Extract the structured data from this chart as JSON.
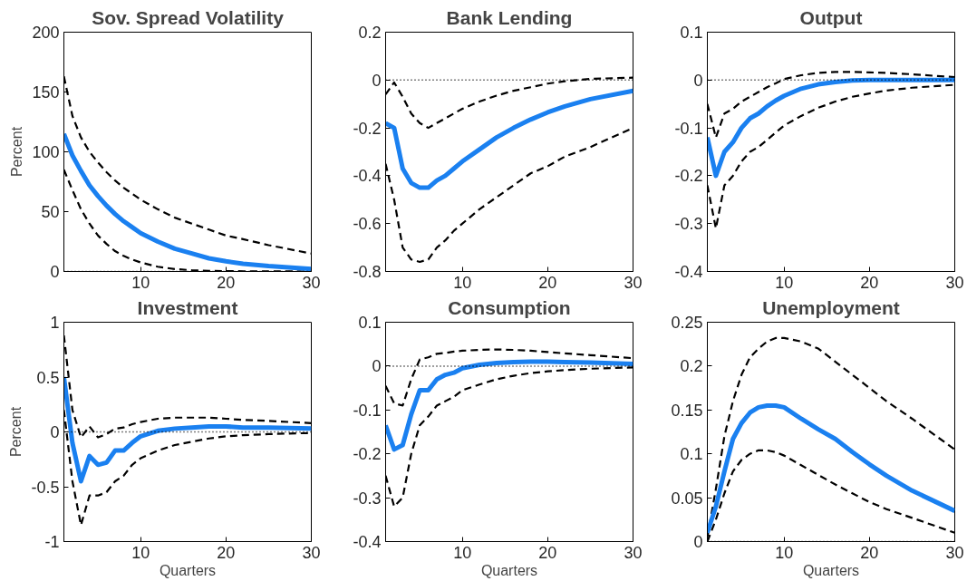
{
  "chart_data": [
    {
      "type": "line",
      "title": "Sov. Spread Volatility",
      "ylabel": "Percent",
      "x": [
        1,
        2,
        3,
        4,
        5,
        6,
        7,
        8,
        9,
        10,
        12,
        14,
        16,
        18,
        20,
        22,
        25,
        30
      ],
      "xlim": [
        1,
        30
      ],
      "xticks": [
        10,
        20,
        30
      ],
      "ylim": [
        0,
        200
      ],
      "yticks": [
        0,
        50,
        100,
        150,
        200
      ],
      "grid": false,
      "ref_lines": [
        {
          "axis": "y",
          "value": 0,
          "color": "#000000",
          "line_style": "dotted"
        }
      ],
      "series": [
        {
          "color": "#000000",
          "line_style": "dashed",
          "values": [
            163,
            130,
            112,
            100,
            91,
            83,
            76,
            70,
            65,
            60,
            52,
            45,
            40,
            35,
            30,
            27,
            22,
            15
          ]
        },
        {
          "color": "#000000",
          "line_style": "dashed",
          "values": [
            85,
            68,
            52,
            40,
            30,
            23,
            17,
            13,
            10,
            7.5,
            4,
            2,
            1,
            0.5,
            0.3,
            0.2,
            0.1,
            0
          ]
        },
        {
          "color": "#1a80f0",
          "line_style": "solid",
          "values": [
            115,
            97,
            84,
            72,
            63,
            55,
            48,
            42,
            37,
            32,
            25,
            19,
            15,
            11,
            8.5,
            6.5,
            4.5,
            2
          ]
        }
      ]
    },
    {
      "type": "line",
      "title": "Bank Lending",
      "x": [
        1,
        2,
        3,
        4,
        5,
        6,
        7,
        8,
        9,
        10,
        12,
        14,
        16,
        18,
        20,
        22,
        25,
        30
      ],
      "xlim": [
        1,
        30
      ],
      "xticks": [
        10,
        20,
        30
      ],
      "ylim": [
        -0.8,
        0.2
      ],
      "yticks": [
        -0.8,
        -0.6,
        -0.4,
        -0.2,
        0,
        0.2
      ],
      "grid": false,
      "ref_lines": [
        {
          "axis": "y",
          "value": 0,
          "color": "#000000",
          "line_style": "dotted"
        }
      ],
      "series": [
        {
          "color": "#000000",
          "line_style": "dashed",
          "values": [
            -0.06,
            -0.01,
            -0.07,
            -0.14,
            -0.18,
            -0.2,
            -0.18,
            -0.16,
            -0.14,
            -0.12,
            -0.09,
            -0.065,
            -0.045,
            -0.03,
            -0.015,
            -0.005,
            0.005,
            0.01
          ]
        },
        {
          "color": "#000000",
          "line_style": "dashed",
          "values": [
            -0.35,
            -0.5,
            -0.7,
            -0.75,
            -0.76,
            -0.75,
            -0.7,
            -0.67,
            -0.63,
            -0.6,
            -0.54,
            -0.49,
            -0.44,
            -0.39,
            -0.36,
            -0.32,
            -0.28,
            -0.2
          ]
        },
        {
          "color": "#1a80f0",
          "line_style": "solid",
          "values": [
            -0.18,
            -0.2,
            -0.37,
            -0.43,
            -0.45,
            -0.45,
            -0.42,
            -0.4,
            -0.37,
            -0.34,
            -0.29,
            -0.24,
            -0.2,
            -0.165,
            -0.135,
            -0.11,
            -0.08,
            -0.045
          ]
        }
      ]
    },
    {
      "type": "line",
      "title": "Output",
      "x": [
        1,
        2,
        3,
        4,
        5,
        6,
        7,
        8,
        9,
        10,
        12,
        14,
        16,
        18,
        20,
        22,
        25,
        30
      ],
      "xlim": [
        1,
        30
      ],
      "xticks": [
        10,
        20,
        30
      ],
      "ylim": [
        -0.4,
        0.1
      ],
      "yticks": [
        -0.4,
        -0.3,
        -0.2,
        -0.1,
        0,
        0.1
      ],
      "grid": false,
      "ref_lines": [
        {
          "axis": "y",
          "value": 0,
          "color": "#000000",
          "line_style": "dotted"
        }
      ],
      "series": [
        {
          "color": "#000000",
          "line_style": "dashed",
          "values": [
            -0.05,
            -0.12,
            -0.07,
            -0.06,
            -0.045,
            -0.035,
            -0.025,
            -0.015,
            -0.007,
            0.002,
            0.01,
            0.015,
            0.017,
            0.017,
            0.016,
            0.015,
            0.012,
            0.006
          ]
        },
        {
          "color": "#000000",
          "line_style": "dashed",
          "values": [
            -0.22,
            -0.31,
            -0.22,
            -0.2,
            -0.17,
            -0.15,
            -0.14,
            -0.125,
            -0.11,
            -0.095,
            -0.075,
            -0.058,
            -0.045,
            -0.035,
            -0.028,
            -0.022,
            -0.016,
            -0.01
          ]
        },
        {
          "color": "#1a80f0",
          "line_style": "solid",
          "values": [
            -0.12,
            -0.2,
            -0.15,
            -0.13,
            -0.1,
            -0.08,
            -0.07,
            -0.055,
            -0.043,
            -0.033,
            -0.018,
            -0.009,
            -0.004,
            -0.001,
            0,
            0,
            0,
            0
          ]
        }
      ]
    },
    {
      "type": "line",
      "title": "Investment",
      "xlabel": "Quarters",
      "ylabel": "Percent",
      "x": [
        1,
        2,
        3,
        4,
        5,
        6,
        7,
        8,
        9,
        10,
        12,
        14,
        16,
        18,
        20,
        22,
        25,
        30
      ],
      "xlim": [
        1,
        30
      ],
      "xticks": [
        10,
        20,
        30
      ],
      "ylim": [
        -1,
        1
      ],
      "yticks": [
        -1,
        -0.5,
        0,
        0.5,
        1
      ],
      "grid": false,
      "ref_lines": [
        {
          "axis": "y",
          "value": 0,
          "color": "#000000",
          "line_style": "dotted"
        }
      ],
      "series": [
        {
          "color": "#000000",
          "line_style": "dashed",
          "values": [
            0.88,
            0.2,
            -0.05,
            0.05,
            -0.05,
            -0.02,
            0.03,
            0.04,
            0.07,
            0.09,
            0.12,
            0.13,
            0.13,
            0.13,
            0.12,
            0.11,
            0.1,
            0.08
          ]
        },
        {
          "color": "#000000",
          "line_style": "dashed",
          "values": [
            0.2,
            -0.45,
            -0.85,
            -0.58,
            -0.58,
            -0.55,
            -0.45,
            -0.4,
            -0.3,
            -0.24,
            -0.17,
            -0.12,
            -0.09,
            -0.06,
            -0.04,
            -0.03,
            -0.02,
            -0.01
          ]
        },
        {
          "color": "#1a80f0",
          "line_style": "solid",
          "values": [
            0.5,
            -0.1,
            -0.45,
            -0.22,
            -0.3,
            -0.28,
            -0.17,
            -0.17,
            -0.1,
            -0.04,
            0.01,
            0.03,
            0.04,
            0.05,
            0.05,
            0.04,
            0.04,
            0.03
          ]
        }
      ]
    },
    {
      "type": "line",
      "title": "Consumption",
      "xlabel": "Quarters",
      "x": [
        1,
        2,
        3,
        4,
        5,
        6,
        7,
        8,
        9,
        10,
        12,
        14,
        16,
        18,
        20,
        22,
        25,
        30
      ],
      "xlim": [
        1,
        30
      ],
      "xticks": [
        10,
        20,
        30
      ],
      "ylim": [
        -0.4,
        0.1
      ],
      "yticks": [
        -0.4,
        -0.3,
        -0.2,
        -0.1,
        0,
        0.1
      ],
      "grid": false,
      "ref_lines": [
        {
          "axis": "y",
          "value": 0,
          "color": "#000000",
          "line_style": "dotted"
        }
      ],
      "series": [
        {
          "color": "#000000",
          "line_style": "dashed",
          "values": [
            -0.045,
            -0.085,
            -0.09,
            -0.03,
            0.015,
            0.02,
            0.028,
            0.03,
            0.033,
            0.035,
            0.037,
            0.038,
            0.037,
            0.035,
            0.032,
            0.029,
            0.025,
            0.018
          ]
        },
        {
          "color": "#000000",
          "line_style": "dashed",
          "values": [
            -0.25,
            -0.32,
            -0.3,
            -0.2,
            -0.135,
            -0.115,
            -0.09,
            -0.08,
            -0.07,
            -0.055,
            -0.042,
            -0.03,
            -0.022,
            -0.016,
            -0.012,
            -0.009,
            -0.006,
            -0.003
          ]
        },
        {
          "color": "#1a80f0",
          "line_style": "solid",
          "values": [
            -0.135,
            -0.19,
            -0.18,
            -0.11,
            -0.055,
            -0.055,
            -0.03,
            -0.02,
            -0.015,
            -0.005,
            0.003,
            0.007,
            0.009,
            0.01,
            0.01,
            0.009,
            0.008,
            0.005
          ]
        }
      ]
    },
    {
      "type": "line",
      "title": "Unemployment",
      "xlabel": "Quarters",
      "x": [
        1,
        2,
        3,
        4,
        5,
        6,
        7,
        8,
        9,
        10,
        12,
        14,
        16,
        18,
        20,
        22,
        25,
        30
      ],
      "xlim": [
        1,
        30
      ],
      "xticks": [
        10,
        20,
        30
      ],
      "ylim": [
        0,
        0.25
      ],
      "yticks": [
        0,
        0.05,
        0.1,
        0.15,
        0.2,
        0.25
      ],
      "grid": false,
      "ref_lines": [
        {
          "axis": "y",
          "value": 0,
          "color": "#000000",
          "line_style": "dotted"
        }
      ],
      "series": [
        {
          "color": "#000000",
          "line_style": "dashed",
          "values": [
            0.005,
            0.06,
            0.12,
            0.16,
            0.19,
            0.21,
            0.22,
            0.228,
            0.232,
            0.232,
            0.228,
            0.22,
            0.205,
            0.19,
            0.175,
            0.16,
            0.14,
            0.105
          ]
        },
        {
          "color": "#000000",
          "line_style": "dashed",
          "values": [
            0,
            0.025,
            0.055,
            0.08,
            0.093,
            0.1,
            0.104,
            0.104,
            0.102,
            0.098,
            0.087,
            0.076,
            0.065,
            0.055,
            0.045,
            0.037,
            0.027,
            0.01
          ]
        },
        {
          "color": "#1a80f0",
          "line_style": "solid",
          "values": [
            0.01,
            0.04,
            0.08,
            0.117,
            0.135,
            0.147,
            0.153,
            0.155,
            0.155,
            0.153,
            0.14,
            0.128,
            0.117,
            0.102,
            0.088,
            0.075,
            0.058,
            0.035
          ]
        }
      ]
    }
  ]
}
